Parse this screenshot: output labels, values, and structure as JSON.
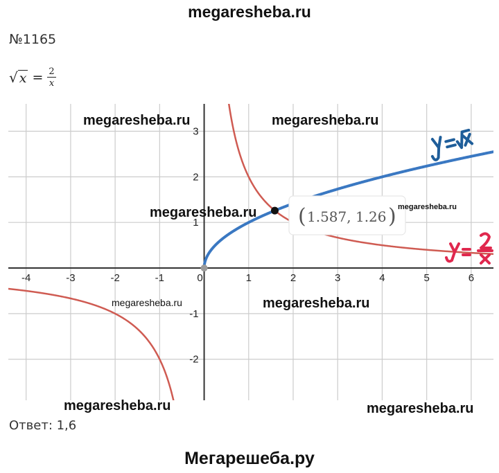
{
  "header": {
    "site": "megaresheba.ru"
  },
  "problem": {
    "number": "№1165",
    "lhs_radicand": "x",
    "rhs_numerator": "2",
    "rhs_denominator": "x",
    "equals": "="
  },
  "answer": "Ответ: 1,6",
  "footer": {
    "site": "Мегарешеба.ру"
  },
  "watermarks": [
    "megaresheba.ru",
    "megaresheba.ru",
    "megaresheba.ru",
    "megaresheba.ru",
    "megaresheba.ru",
    "megaresheba.ru",
    "megaresheba.ru",
    "megaresheba.ru"
  ],
  "colors": {
    "sqrt_curve": "#3a78c2",
    "hyperbola": "#cf5b52",
    "grid": "#cccccc",
    "axis": "#333333",
    "label_sqrt": "#1f5e9a",
    "label_hyperbola": "#e0284e"
  },
  "chart_data": {
    "type": "line",
    "xlim": [
      -4.4,
      6.5
    ],
    "ylim": [
      -2.9,
      3.6
    ],
    "grid": true,
    "x_ticks": [
      -4,
      -3,
      -2,
      -1,
      0,
      1,
      2,
      3,
      4,
      5,
      6
    ],
    "y_ticks": [
      -2,
      -1,
      1,
      2,
      3
    ],
    "x_tick_labels": [
      "-4",
      "-3",
      "-2",
      "-1",
      "0",
      "1",
      "2",
      "3",
      "4",
      "5",
      "6"
    ],
    "y_tick_labels": [
      "-2",
      "-1",
      "1",
      "2",
      "3"
    ],
    "series": [
      {
        "name": "y = √x",
        "function": "sqrt(x)",
        "domain": [
          0,
          6.5
        ],
        "color": "#3a78c2"
      },
      {
        "name": "y = 2/x",
        "function": "2/x",
        "domain": [
          -4.4,
          6.5
        ],
        "color": "#cf5b52"
      }
    ],
    "intersection": {
      "x": 1.587,
      "y": 1.26,
      "label": "(1.587, 1.26)"
    },
    "annotations": {
      "sqrt_label": "y = √x",
      "hyperbola_label": "y = 2/x"
    }
  }
}
